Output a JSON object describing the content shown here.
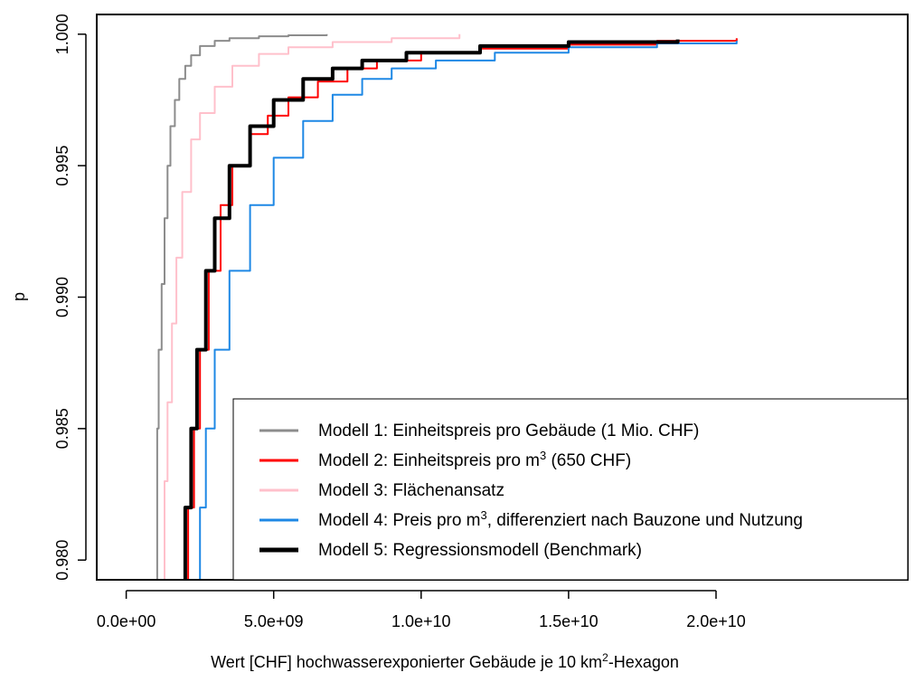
{
  "chart_data": {
    "type": "line",
    "title": "",
    "xlabel": "Wert [CHF] hochwasserexponierter Gebäude je 10 km²-Hexagon",
    "xlabel_parts": {
      "pre": "Wert [CHF] hochwasserexponierter Gebäude je 10 km",
      "sup": "2",
      "post": "-Hexagon"
    },
    "ylabel": "p",
    "xlim": [
      -1000000000.0,
      26500000000.0
    ],
    "ylim": [
      0.97925,
      1.00075
    ],
    "x_ticks": [
      0,
      5000000000.0,
      10000000000.0,
      15000000000.0,
      20000000000.0
    ],
    "x_tick_labels": [
      "0.0e+00",
      "5.0e+09",
      "1.0e+10",
      "1.5e+10",
      "2.0e+10"
    ],
    "y_ticks": [
      0.98,
      0.985,
      0.99,
      0.995,
      1.0
    ],
    "y_tick_labels": [
      "0.980",
      "0.985",
      "0.990",
      "0.995",
      "1.000"
    ],
    "grid": false,
    "legend_position": "bottom-right",
    "series": [
      {
        "name": "Modell 1: Einheitspreis pro Gebäude (1 Mio. CHF)",
        "legend": {
          "pre": "Modell 1: Einheitspreis pro Gebäude (1 Mio. CHF)",
          "sup": "",
          "post": ""
        },
        "color": "#8c8c8c",
        "width": 2,
        "points": [
          [
            1000000000.0,
            0.979
          ],
          [
            1050000000.0,
            0.985
          ],
          [
            1100000000.0,
            0.988
          ],
          [
            1200000000.0,
            0.9905
          ],
          [
            1300000000.0,
            0.993
          ],
          [
            1400000000.0,
            0.995
          ],
          [
            1500000000.0,
            0.9965
          ],
          [
            1650000000.0,
            0.9975
          ],
          [
            1800000000.0,
            0.9983
          ],
          [
            2000000000.0,
            0.9988
          ],
          [
            2200000000.0,
            0.9992
          ],
          [
            2500000000.0,
            0.99955
          ],
          [
            3000000000.0,
            0.99975
          ],
          [
            3500000000.0,
            0.99985
          ],
          [
            4500000000.0,
            0.99992
          ],
          [
            5500000000.0,
            0.99996
          ],
          [
            6800000000.0,
            1.0
          ]
        ]
      },
      {
        "name": "Modell 2: Einheitspreis pro m³ (650 CHF)",
        "legend": {
          "pre": "Modell 2: Einheitspreis pro m",
          "sup": "3",
          "post": " (650 CHF)"
        },
        "color": "#ff0000",
        "width": 2,
        "points": [
          [
            2000000000.0,
            0.979
          ],
          [
            2100000000.0,
            0.982
          ],
          [
            2300000000.0,
            0.985
          ],
          [
            2500000000.0,
            0.988
          ],
          [
            2800000000.0,
            0.991
          ],
          [
            3200000000.0,
            0.9935
          ],
          [
            3600000000.0,
            0.995
          ],
          [
            4200000000.0,
            0.9962
          ],
          [
            4800000000.0,
            0.9969
          ],
          [
            5500000000.0,
            0.9976
          ],
          [
            6500000000.0,
            0.9982
          ],
          [
            7500000000.0,
            0.9987
          ],
          [
            8500000000.0,
            0.999
          ],
          [
            10000000000.0,
            0.9993
          ],
          [
            12000000000.0,
            0.99945
          ],
          [
            15000000000.0,
            0.9996
          ],
          [
            18000000000.0,
            0.99975
          ],
          [
            20700000000.0,
            0.99985
          ]
        ]
      },
      {
        "name": "Modell 3: Flächenansatz",
        "legend": {
          "pre": "Modell 3: Flächenansatz",
          "sup": "",
          "post": ""
        },
        "color": "#ffc0cb",
        "width": 2,
        "points": [
          [
            1200000000.0,
            0.979
          ],
          [
            1300000000.0,
            0.983
          ],
          [
            1400000000.0,
            0.986
          ],
          [
            1550000000.0,
            0.989
          ],
          [
            1700000000.0,
            0.9915
          ],
          [
            1900000000.0,
            0.994
          ],
          [
            2200000000.0,
            0.996
          ],
          [
            2500000000.0,
            0.997
          ],
          [
            3000000000.0,
            0.998
          ],
          [
            3600000000.0,
            0.9988
          ],
          [
            4500000000.0,
            0.99925
          ],
          [
            5500000000.0,
            0.9995
          ],
          [
            7000000000.0,
            0.9997
          ],
          [
            9000000000.0,
            0.99985
          ],
          [
            11300000000.0,
            1.0
          ]
        ]
      },
      {
        "name": "Modell 4: Preis pro m³, differenziert nach Bauzone und Nutzung",
        "legend": {
          "pre": "Modell 4: Preis pro m",
          "sup": "3",
          "post": ", differenziert nach Bauzone und Nutzung"
        },
        "color": "#1e88e5",
        "width": 2,
        "points": [
          [
            2300000000.0,
            0.979
          ],
          [
            2500000000.0,
            0.982
          ],
          [
            2700000000.0,
            0.985
          ],
          [
            3000000000.0,
            0.988
          ],
          [
            3500000000.0,
            0.991
          ],
          [
            4200000000.0,
            0.9935
          ],
          [
            5000000000.0,
            0.9953
          ],
          [
            6000000000.0,
            0.9967
          ],
          [
            7000000000.0,
            0.9977
          ],
          [
            8000000000.0,
            0.9983
          ],
          [
            9000000000.0,
            0.9987
          ],
          [
            10500000000.0,
            0.999
          ],
          [
            12500000000.0,
            0.9993
          ],
          [
            15000000000.0,
            0.9995
          ],
          [
            18000000000.0,
            0.99965
          ],
          [
            20700000000.0,
            0.99975
          ]
        ]
      },
      {
        "name": "Modell 5: Regressionsmodell (Benchmark)",
        "legend": {
          "pre": "Modell 5: Regressionsmodell (Benchmark)",
          "sup": "",
          "post": ""
        },
        "color": "#000000",
        "width": 4,
        "points": [
          [
            1900000000.0,
            0.979
          ],
          [
            2000000000.0,
            0.982
          ],
          [
            2200000000.0,
            0.985
          ],
          [
            2400000000.0,
            0.988
          ],
          [
            2700000000.0,
            0.991
          ],
          [
            3000000000.0,
            0.993
          ],
          [
            3500000000.0,
            0.995
          ],
          [
            4200000000.0,
            0.9965
          ],
          [
            5000000000.0,
            0.9975
          ],
          [
            6000000000.0,
            0.9983
          ],
          [
            7000000000.0,
            0.9987
          ],
          [
            8000000000.0,
            0.999
          ],
          [
            9500000000.0,
            0.9993
          ],
          [
            12000000000.0,
            0.99955
          ],
          [
            15000000000.0,
            0.9997
          ],
          [
            18700000000.0,
            0.9998
          ]
        ]
      }
    ]
  }
}
